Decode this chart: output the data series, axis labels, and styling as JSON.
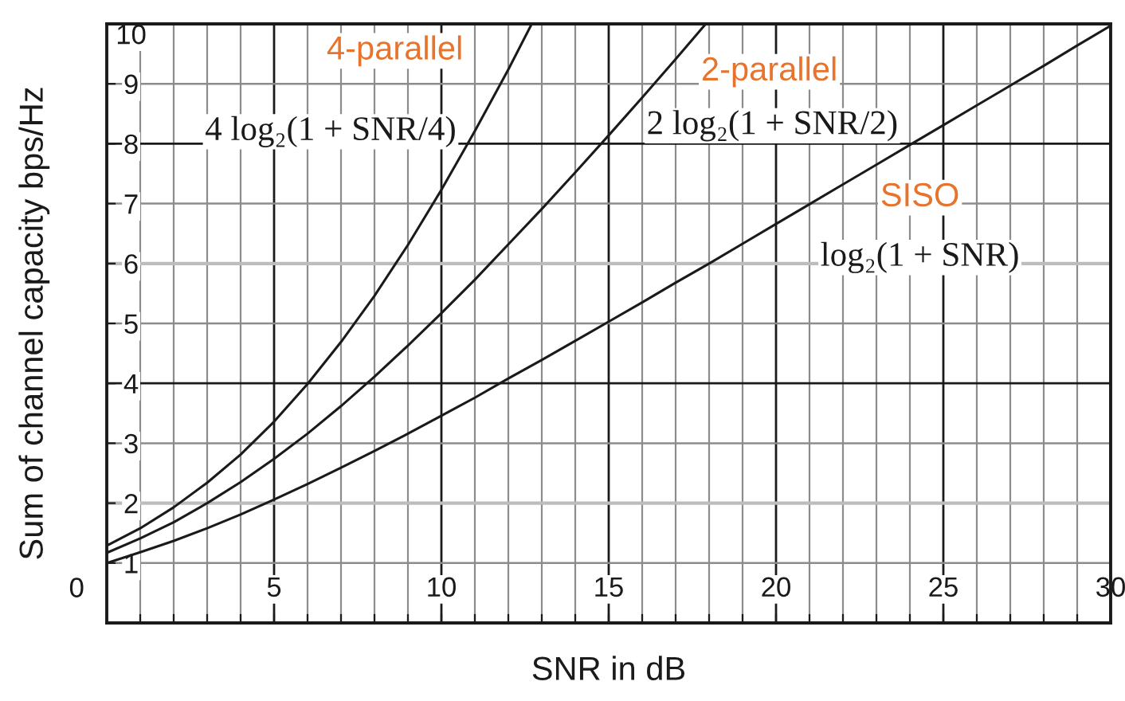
{
  "chart_data": {
    "type": "line",
    "xlabel": "SNR in dB",
    "ylabel": "Sum of channel capacity bps/Hz",
    "xlim": [
      0,
      30
    ],
    "ylim": [
      0,
      10
    ],
    "xticks": [
      {
        "value": 0,
        "label": null
      },
      {
        "value": 1,
        "label": null
      },
      {
        "value": 2,
        "label": null
      },
      {
        "value": 3,
        "label": null
      },
      {
        "value": 4,
        "label": null
      },
      5,
      {
        "value": 6,
        "label": null
      },
      {
        "value": 7,
        "label": null
      },
      {
        "value": 8,
        "label": null
      },
      {
        "value": 9,
        "label": null
      },
      10,
      {
        "value": 11,
        "label": null
      },
      {
        "value": 12,
        "label": null
      },
      {
        "value": 13,
        "label": null
      },
      {
        "value": 14,
        "label": null
      },
      15,
      {
        "value": 16,
        "label": null
      },
      {
        "value": 17,
        "label": null
      },
      {
        "value": 18,
        "label": null
      },
      {
        "value": 19,
        "label": null
      },
      20,
      {
        "value": 21,
        "label": null
      },
      {
        "value": 22,
        "label": null
      },
      {
        "value": 23,
        "label": null
      },
      {
        "value": 24,
        "label": null
      },
      25,
      {
        "value": 26,
        "label": null
      },
      {
        "value": 27,
        "label": null
      },
      {
        "value": 28,
        "label": null
      },
      {
        "value": 29,
        "label": null
      },
      30
    ],
    "yticks": [
      1,
      2,
      3,
      4,
      5,
      6,
      7,
      8,
      9,
      10
    ],
    "grid": true,
    "line_style": "solid",
    "series": [
      {
        "name": "4-parallel",
        "color": "#1a1a1a",
        "x": [
          0,
          1,
          2,
          3,
          4,
          5,
          6,
          7,
          8,
          9,
          10,
          11,
          12,
          12.7
        ],
        "values": [
          1.29,
          1.58,
          1.93,
          2.34,
          2.81,
          3.36,
          3.99,
          4.69,
          5.46,
          6.31,
          7.23,
          8.21,
          9.24,
          10
        ]
      },
      {
        "name": "2-parallel",
        "color": "#1a1a1a",
        "x": [
          0,
          1,
          2,
          3,
          4,
          5,
          6,
          7,
          8,
          9,
          10,
          11,
          12,
          13,
          14,
          15,
          16,
          17,
          17.9
        ],
        "values": [
          1.17,
          1.41,
          1.68,
          2.0,
          2.35,
          2.74,
          3.16,
          3.62,
          4.11,
          4.63,
          5.17,
          5.73,
          6.32,
          6.91,
          7.52,
          8.14,
          8.77,
          9.41,
          10
        ]
      },
      {
        "name": "SISO",
        "color": "#1a1a1a",
        "x": [
          0,
          1,
          2,
          3,
          4,
          5,
          6,
          7,
          8,
          9,
          10,
          11,
          12,
          13,
          14,
          15,
          16,
          17,
          18,
          19,
          20,
          21,
          22,
          23,
          24,
          25,
          26,
          27,
          28,
          29,
          30
        ],
        "values": [
          1.0,
          1.18,
          1.37,
          1.58,
          1.81,
          2.06,
          2.32,
          2.59,
          2.87,
          3.16,
          3.46,
          3.76,
          4.08,
          4.39,
          4.71,
          5.03,
          5.35,
          5.68,
          6.0,
          6.33,
          6.66,
          6.99,
          7.32,
          7.65,
          7.98,
          8.31,
          8.64,
          8.97,
          9.3,
          9.64,
          9.97
        ]
      }
    ],
    "annotations": [
      "4 log₂(1 + SNR/4)",
      "2 log₂(1 + SNR/2)",
      "log₂(1 + SNR)",
      "0"
    ]
  }
}
